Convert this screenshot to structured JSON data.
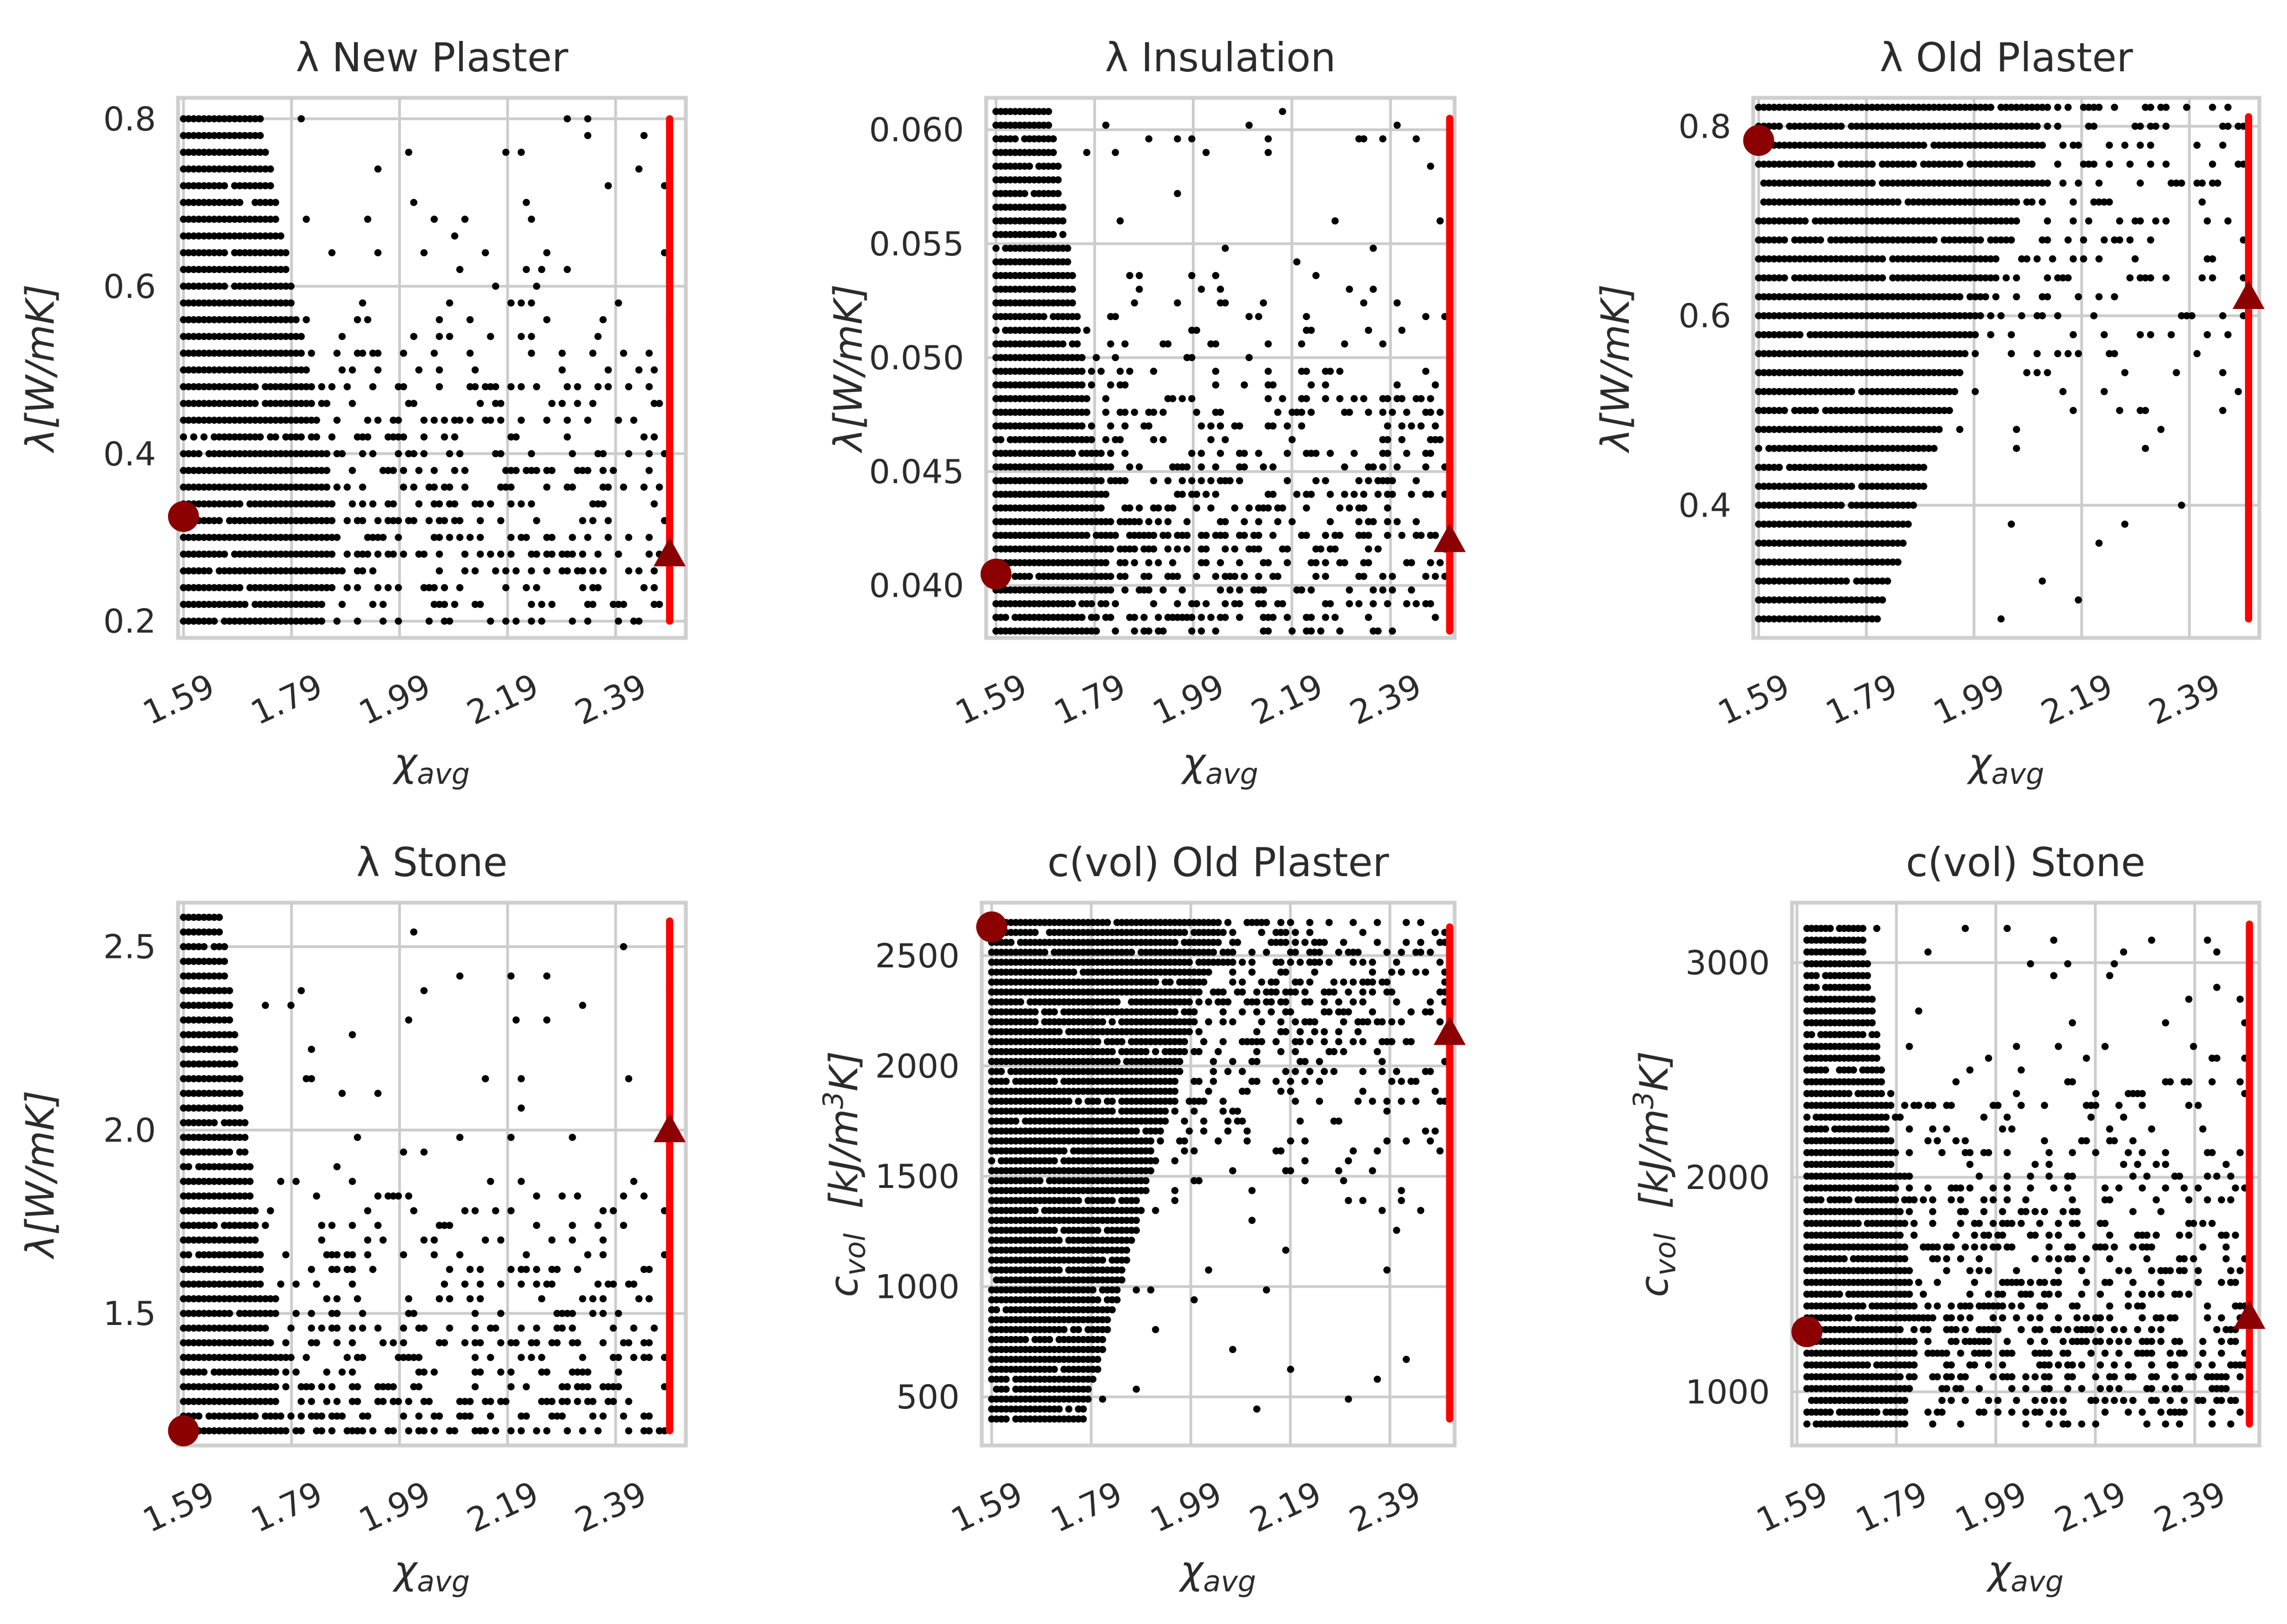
{
  "colors": {
    "points": "#000000",
    "bound_line": "#ff0000",
    "markers": "#8b0000",
    "grid": "#cccccc",
    "frame": "#cfcfcf",
    "text": "#2b2b2b"
  },
  "chart_data": [
    {
      "type": "scatter",
      "title": "λ New Plaster",
      "xlabel": "χavg",
      "xlabel_main": "χ",
      "xlabel_sub": "avg",
      "ylabel": "λ[W/mK]",
      "xlim": [
        1.58,
        2.52
      ],
      "ylim": [
        0.18,
        0.825
      ],
      "xticks": [
        1.59,
        1.79,
        1.99,
        2.19,
        2.39
      ],
      "xtick_labels": [
        "1.59",
        "1.79",
        "1.99",
        "2.19",
        "2.39"
      ],
      "yticks": [
        0.2,
        0.4,
        0.6,
        0.8
      ],
      "ytick_labels": [
        "0.2",
        "0.4",
        "0.6",
        "0.8"
      ],
      "scatter": {
        "y_min": 0.2,
        "y_max": 0.8,
        "y_step": 0.02,
        "x_min": 1.59,
        "x_max": 2.49,
        "dense_end": 0.32,
        "dense_value": 0.3
      },
      "threshold_x": 2.49,
      "threshold_y_range": [
        0.2,
        0.8
      ],
      "circle_marker": {
        "x": 1.59,
        "y": 0.325
      },
      "triangle_marker": {
        "x": 2.49,
        "y": 0.28
      }
    },
    {
      "type": "scatter",
      "title": "λ Insulation",
      "xlabel": "χavg",
      "xlabel_main": "χ",
      "xlabel_sub": "avg",
      "ylabel": "λ[W/mK]",
      "xlim": [
        1.57,
        2.52
      ],
      "ylim": [
        0.0377,
        0.0614
      ],
      "xticks": [
        1.59,
        1.79,
        1.99,
        2.19,
        2.39
      ],
      "xtick_labels": [
        "1.59",
        "1.79",
        "1.99",
        "2.19",
        "2.39"
      ],
      "yticks": [
        0.04,
        0.045,
        0.05,
        0.055,
        0.06
      ],
      "ytick_labels": [
        "0.040",
        "0.045",
        "0.050",
        "0.055",
        "0.060"
      ],
      "scatter": {
        "y_min": 0.038,
        "y_max": 0.0605,
        "y_step": 0.0006,
        "x_min": 1.59,
        "x_max": 2.51,
        "dense_end": 0.25,
        "dense_value": 0.0415
      },
      "threshold_x": 2.51,
      "threshold_y_range": [
        0.038,
        0.0605
      ],
      "circle_marker": {
        "x": 1.59,
        "y": 0.0405
      },
      "triangle_marker": {
        "x": 2.51,
        "y": 0.042
      }
    },
    {
      "type": "scatter",
      "title": "λ Old Plaster",
      "xlabel": "χavg",
      "xlabel_main": "χ",
      "xlabel_sub": "avg",
      "ylabel": "λ[W/mK]",
      "xlim": [
        1.58,
        2.52
      ],
      "ylim": [
        0.26,
        0.83
      ],
      "xticks": [
        1.59,
        1.79,
        1.99,
        2.19,
        2.39
      ],
      "xtick_labels": [
        "1.59",
        "1.79",
        "1.99",
        "2.19",
        "2.39"
      ],
      "yticks": [
        0.4,
        0.6,
        0.8
      ],
      "ytick_labels": [
        "0.4",
        "0.6",
        "0.8"
      ],
      "scatter": {
        "y_min": 0.28,
        "y_max": 0.81,
        "y_step": 0.02,
        "x_min": 1.59,
        "x_max": 2.5,
        "dense_end": 0.58,
        "dense_value": 0.79
      },
      "threshold_x": 2.5,
      "threshold_y_range": [
        0.28,
        0.81
      ],
      "circle_marker": {
        "x": 1.59,
        "y": 0.785
      },
      "triangle_marker": {
        "x": 2.5,
        "y": 0.62
      }
    },
    {
      "type": "scatter",
      "title": "λ Stone",
      "xlabel": "χavg",
      "xlabel_main": "χ",
      "xlabel_sub": "avg",
      "ylabel": "λ[W/mK]",
      "xlim": [
        1.58,
        2.52
      ],
      "ylim": [
        1.14,
        2.62
      ],
      "xticks": [
        1.59,
        1.79,
        1.99,
        2.19,
        2.39
      ],
      "xtick_labels": [
        "1.59",
        "1.79",
        "1.99",
        "2.19",
        "2.39"
      ],
      "yticks": [
        1.5,
        2.0,
        2.5
      ],
      "ytick_labels": [
        "1.5",
        "2.0",
        "2.5"
      ],
      "scatter": {
        "y_min": 1.18,
        "y_max": 2.57,
        "y_step": 0.04,
        "x_min": 1.59,
        "x_max": 2.49,
        "dense_end": 0.2,
        "dense_value": 1.18
      },
      "threshold_x": 2.49,
      "threshold_y_range": [
        1.18,
        2.57
      ],
      "circle_marker": {
        "x": 1.59,
        "y": 1.18
      },
      "triangle_marker": {
        "x": 2.49,
        "y": 2.0
      }
    },
    {
      "type": "scatter",
      "title": "c(vol) Old Plaster",
      "xlabel": "χavg",
      "xlabel_main": "χ",
      "xlabel_sub": "avg",
      "ylabel": "cvol [kJ/m3K]",
      "ylabel_main": "c",
      "ylabel_sub": "vol",
      "ylabel_unit": "[kJ/m",
      "ylabel_sup": "3",
      "ylabel_end": "K]",
      "xlim": [
        1.57,
        2.52
      ],
      "ylim": [
        280,
        2740
      ],
      "xticks": [
        1.59,
        1.79,
        1.99,
        2.19,
        2.39
      ],
      "xtick_labels": [
        "1.59",
        "1.79",
        "1.99",
        "2.19",
        "2.39"
      ],
      "yticks": [
        500,
        1000,
        1500,
        2000,
        2500
      ],
      "ytick_labels": [
        "500",
        "1000",
        "1500",
        "2000",
        "2500"
      ],
      "scatter": {
        "y_min": 400,
        "y_max": 2630,
        "y_step": 45,
        "x_min": 1.59,
        "x_max": 2.51,
        "dense_end": 0.5,
        "dense_value": 2620
      },
      "threshold_x": 2.51,
      "threshold_y_range": [
        400,
        2630
      ],
      "circle_marker": {
        "x": 1.59,
        "y": 2630
      },
      "triangle_marker": {
        "x": 2.51,
        "y": 2150
      }
    },
    {
      "type": "scatter",
      "title": "c(vol) Stone",
      "xlabel": "χavg",
      "xlabel_main": "χ",
      "xlabel_sub": "avg",
      "ylabel": "cvol [kJ/m3K]",
      "ylabel_main": "c",
      "ylabel_sub": "vol",
      "ylabel_unit": "[kJ/m",
      "ylabel_sup": "3",
      "ylabel_end": "K]",
      "xlim": [
        1.58,
        2.52
      ],
      "ylim": [
        750,
        3280
      ],
      "xticks": [
        1.59,
        1.79,
        1.99,
        2.19,
        2.39
      ],
      "xtick_labels": [
        "1.59",
        "1.79",
        "1.99",
        "2.19",
        "2.39"
      ],
      "yticks": [
        1000,
        2000,
        3000
      ],
      "ytick_labels": [
        "1000",
        "2000",
        "3000"
      ],
      "scatter": {
        "y_min": 850,
        "y_max": 3180,
        "y_step": 55,
        "x_min": 1.61,
        "x_max": 2.5,
        "dense_end": 0.25,
        "dense_value": 1280
      },
      "threshold_x": 2.5,
      "threshold_y_range": [
        850,
        3180
      ],
      "circle_marker": {
        "x": 1.61,
        "y": 1280
      },
      "triangle_marker": {
        "x": 2.5,
        "y": 1350
      }
    }
  ]
}
